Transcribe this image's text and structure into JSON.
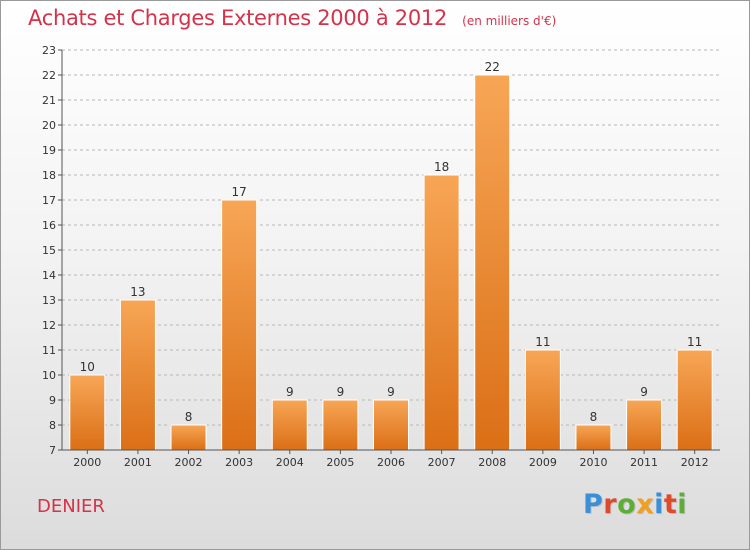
{
  "header": {
    "title": "Achats et Charges Externes 2000 à 2012",
    "unit_note": "(en milliers d'€)"
  },
  "footer": {
    "commune": "DENIER",
    "logo_text": "Proxiti"
  },
  "colors": {
    "title": "#d6324a",
    "bar_top": "#f7a656",
    "bar_bottom": "#db6f16",
    "grid": "#b8b8b8",
    "axis": "#555555",
    "logo_letters": [
      "#3a8fd6",
      "#e04a2a",
      "#5cae37",
      "#f0a020",
      "#3a8fd6",
      "#e04a2a",
      "#5cae37"
    ]
  },
  "chart_data": {
    "type": "bar",
    "categories": [
      "2000",
      "2001",
      "2002",
      "2003",
      "2004",
      "2005",
      "2006",
      "2007",
      "2008",
      "2009",
      "2010",
      "2011",
      "2012"
    ],
    "values": [
      10,
      13,
      8,
      17,
      9,
      9,
      9,
      18,
      22,
      11,
      8,
      9,
      11
    ],
    "ylim": [
      7,
      23
    ],
    "yticks": [
      7,
      8,
      9,
      10,
      11,
      12,
      13,
      14,
      15,
      16,
      17,
      18,
      19,
      20,
      21,
      22,
      23
    ],
    "grid": true,
    "data_labels": true
  }
}
